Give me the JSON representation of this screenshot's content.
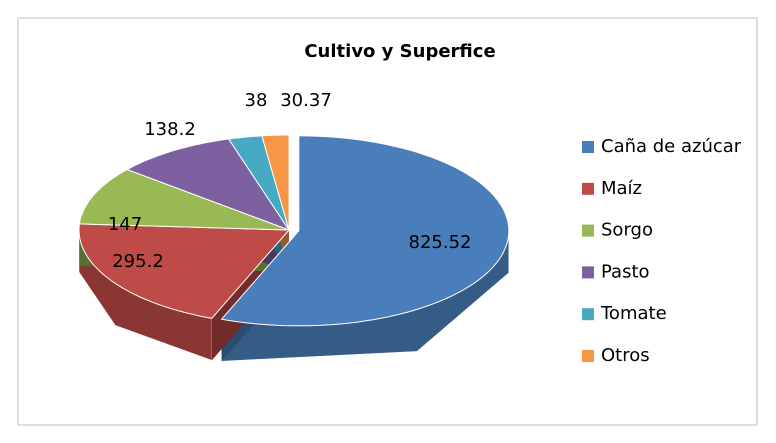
{
  "chart_data": {
    "type": "pie",
    "title": "Cultivo y Superfice",
    "categories": [
      "Caña de azúcar",
      "Maíz",
      "Sorgo",
      "Pasto",
      "Tomate",
      "Otros"
    ],
    "values": [
      825.52,
      295.2,
      147,
      138.2,
      38,
      30.37
    ],
    "colors": [
      "#4a7ebb",
      "#be4b48",
      "#98b954",
      "#7d60a0",
      "#46aac5",
      "#f79646"
    ],
    "legend": "right"
  }
}
